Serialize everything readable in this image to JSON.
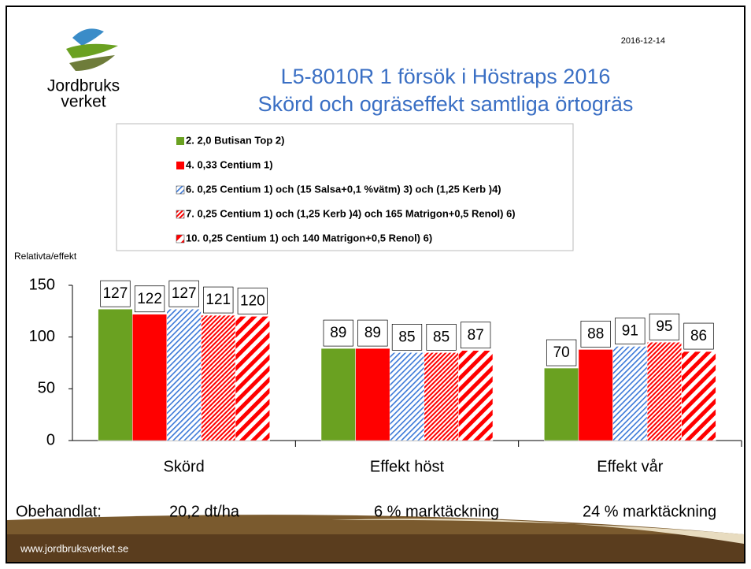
{
  "logo_text": [
    "Jordbruks",
    "verket"
  ],
  "date": "2016-12-14",
  "footer_url": "www.jordbruksverket.se",
  "chart_data": {
    "type": "bar",
    "title": "L5-8010R 1 försök i Höstraps 2016",
    "subtitle": "Skörd och ogräseffekt samtliga örtogräs",
    "y_label": "Relativta/effekt",
    "categories": [
      "Skörd",
      "Effekt höst",
      "Effekt vår"
    ],
    "series": [
      {
        "name": "2. 2,0 Butisan Top 2)",
        "color": "#6aa121",
        "pattern": "solid",
        "values": [
          127,
          89,
          70
        ]
      },
      {
        "name": "4. 0,33 Centium 1)",
        "color": "#ff0000",
        "pattern": "solid",
        "values": [
          122,
          89,
          88
        ]
      },
      {
        "name": "6. 0,25 Centium 1) och (15 Salsa+0,1 %vätm) 3) och (1,25 Kerb )4)",
        "color": "#3a78d8",
        "pattern": "hatch",
        "values": [
          127,
          85,
          91
        ]
      },
      {
        "name": "7. 0,25 Centium 1) och (1,25 Kerb )4) och 165 Matrigon+0,5 Renol) 6)",
        "color": "#ff0000",
        "pattern": "dense",
        "values": [
          121,
          85,
          95
        ]
      },
      {
        "name": "10.  0,25 Centium 1)  och 140 Matrigon+0,5 Renol) 6)",
        "color": "#ff0000",
        "pattern": "stripe",
        "values": [
          120,
          87,
          86
        ]
      }
    ],
    "ylim": [
      0,
      150
    ],
    "yticks": [
      0,
      50,
      100,
      150
    ],
    "annotations": [
      "Obehandlat:",
      "20,2 dt/ha",
      "6 % marktäckning",
      "24 % marktäckning"
    ]
  }
}
